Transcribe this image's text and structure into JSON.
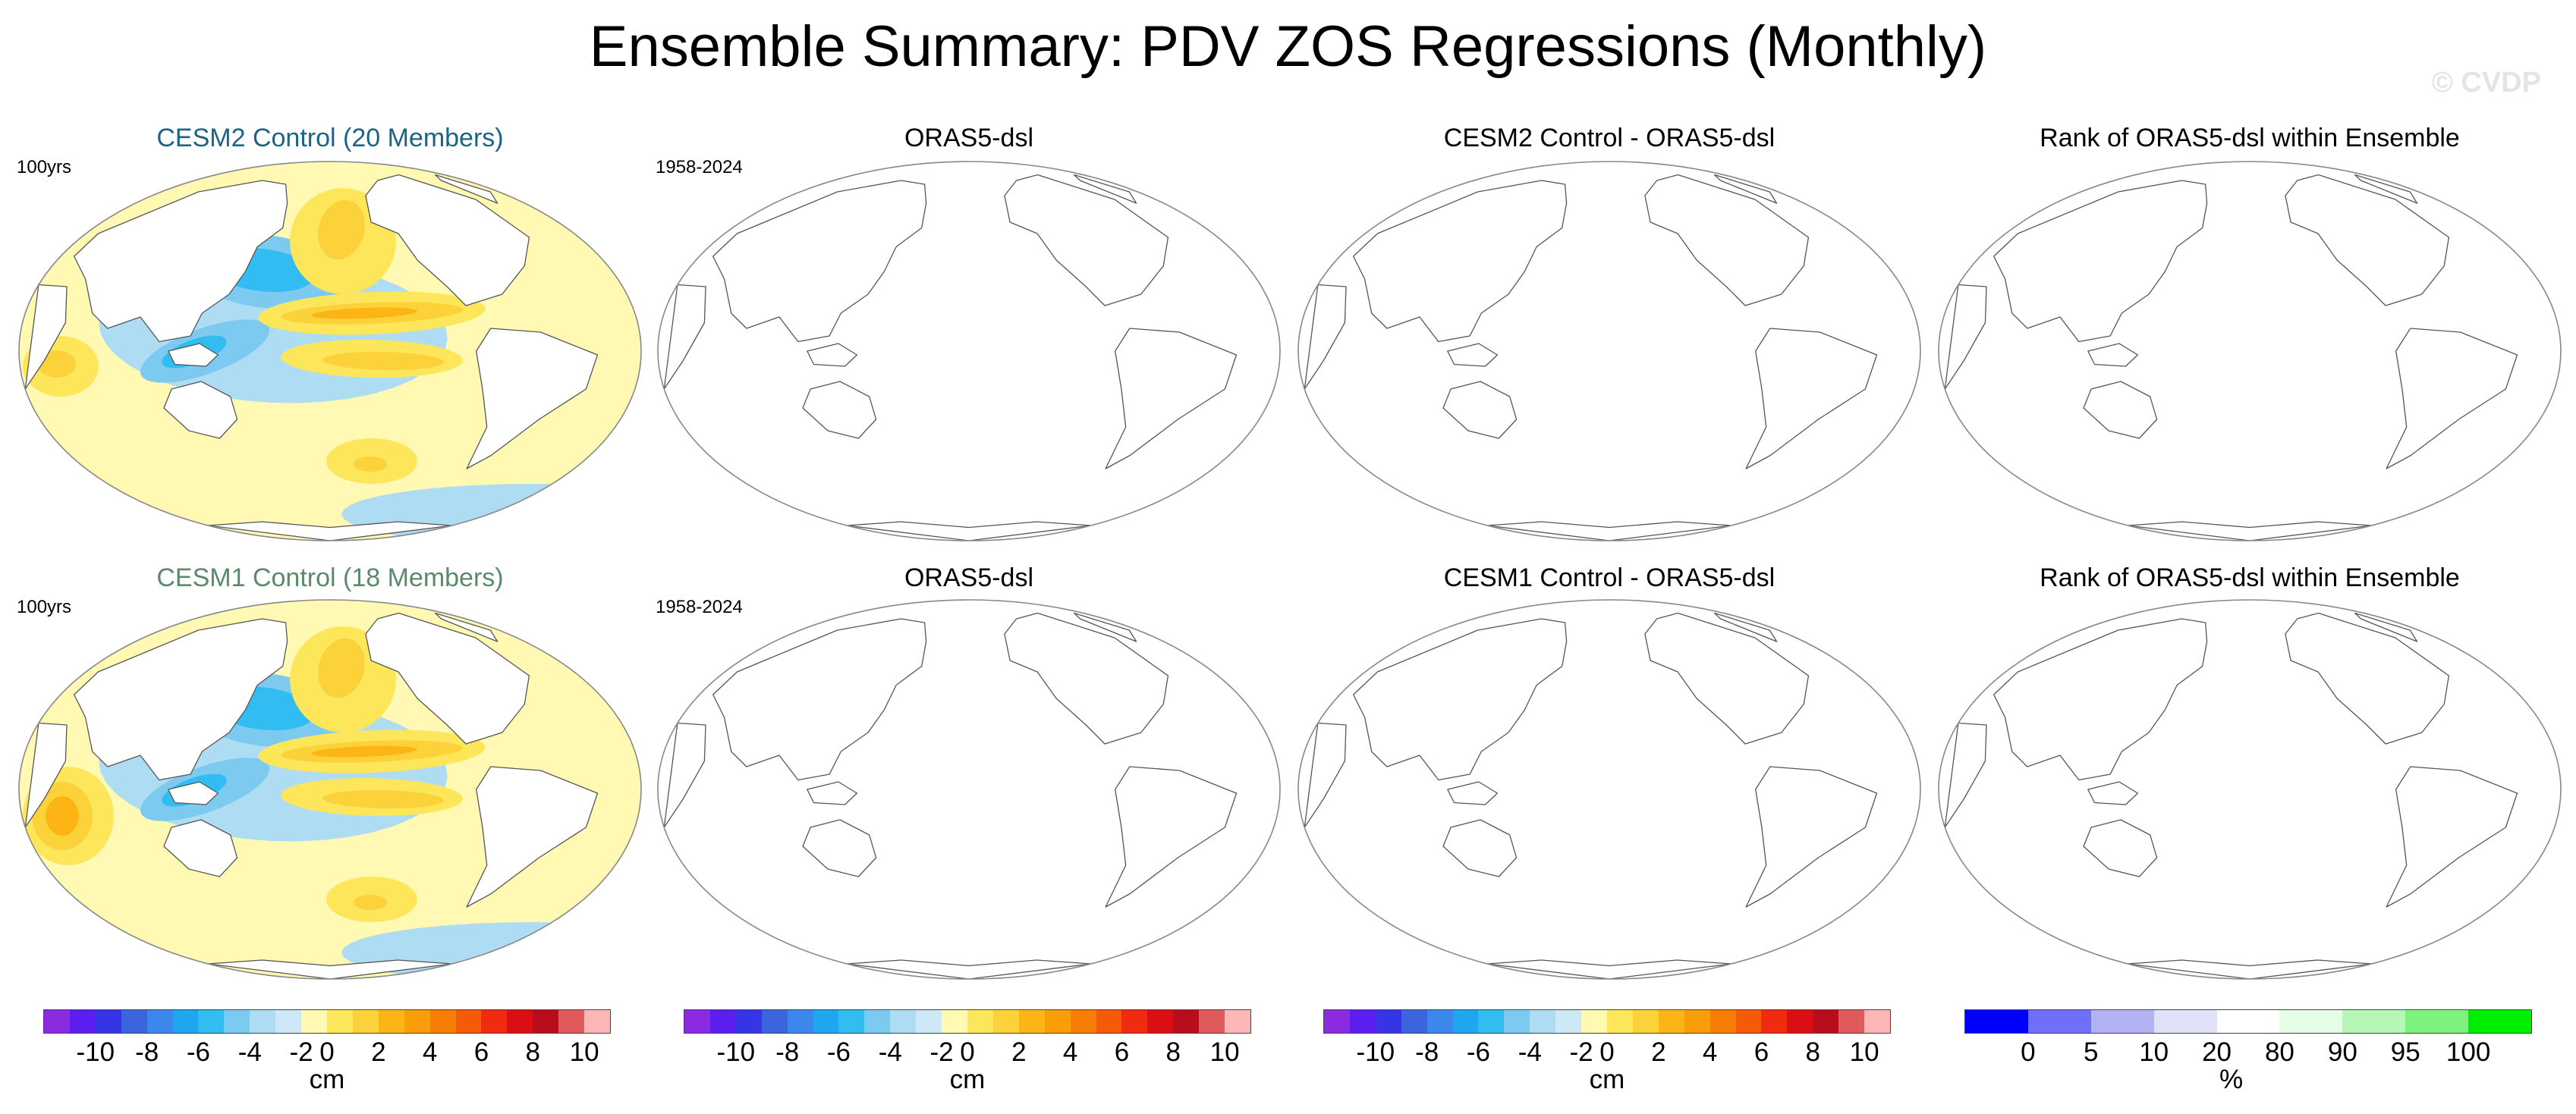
{
  "title": "Ensemble Summary: PDV ZOS Regressions (Monthly)",
  "watermark": "© CVDP",
  "rows": [
    {
      "panels": [
        {
          "title": "CESM2 Control (20 Members)",
          "period": "100yrs",
          "title_color": "#1a6585",
          "filled": true,
          "variant": 0
        },
        {
          "title": "ORAS5-dsl",
          "period": "1958-2024",
          "title_color": "#000000",
          "filled": false
        },
        {
          "title": "CESM2 Control - ORAS5-dsl",
          "period": "",
          "title_color": "#000000",
          "filled": false
        },
        {
          "title": "Rank of ORAS5-dsl within Ensemble",
          "period": "",
          "title_color": "#000000",
          "filled": false
        }
      ]
    },
    {
      "panels": [
        {
          "title": "CESM1 Control (18 Members)",
          "period": "100yrs",
          "title_color": "#5b8a6b",
          "filled": true,
          "variant": 1
        },
        {
          "title": "ORAS5-dsl",
          "period": "1958-2024",
          "title_color": "#000000",
          "filled": false
        },
        {
          "title": "CESM1 Control - ORAS5-dsl",
          "period": "",
          "title_color": "#000000",
          "filled": false
        },
        {
          "title": "Rank of ORAS5-dsl within Ensemble",
          "period": "",
          "title_color": "#000000",
          "filled": false
        }
      ]
    }
  ],
  "colorbars": [
    {
      "unit": "cm",
      "colors": [
        "#8a2be2",
        "#5a1ef0",
        "#3535e6",
        "#3c64dc",
        "#3c87ec",
        "#1fa6ef",
        "#32bdf2",
        "#7ccaf0",
        "#aedcf2",
        "#cde9f7",
        "#fff9b4",
        "#fde65a",
        "#fcd23a",
        "#fcb514",
        "#f99d0a",
        "#f87d04",
        "#f55a08",
        "#f02c10",
        "#d90f14",
        "#b80d1a",
        "#e05a5a",
        "#fcb6b6"
      ],
      "ticks": [
        "-10",
        "-8",
        "-6",
        "-4",
        "-2",
        "0",
        "2",
        "4",
        "6",
        "8",
        "10"
      ],
      "tick_index": [
        2,
        4,
        6,
        8,
        10,
        11,
        13,
        15,
        17,
        19,
        21
      ]
    },
    {
      "unit": "cm",
      "colors": [
        "#8a2be2",
        "#5a1ef0",
        "#3535e6",
        "#3c64dc",
        "#3c87ec",
        "#1fa6ef",
        "#32bdf2",
        "#7ccaf0",
        "#aedcf2",
        "#cde9f7",
        "#fff9b4",
        "#fde65a",
        "#fcd23a",
        "#fcb514",
        "#f99d0a",
        "#f87d04",
        "#f55a08",
        "#f02c10",
        "#d90f14",
        "#b80d1a",
        "#e05a5a",
        "#fcb6b6"
      ],
      "ticks": [
        "-10",
        "-8",
        "-6",
        "-4",
        "-2",
        "0",
        "2",
        "4",
        "6",
        "8",
        "10"
      ],
      "tick_index": [
        2,
        4,
        6,
        8,
        10,
        11,
        13,
        15,
        17,
        19,
        21
      ]
    },
    {
      "unit": "cm",
      "colors": [
        "#8a2be2",
        "#5a1ef0",
        "#3535e6",
        "#3c64dc",
        "#3c87ec",
        "#1fa6ef",
        "#32bdf2",
        "#7ccaf0",
        "#aedcf2",
        "#cde9f7",
        "#fff9b4",
        "#fde65a",
        "#fcd23a",
        "#fcb514",
        "#f99d0a",
        "#f87d04",
        "#f55a08",
        "#f02c10",
        "#d90f14",
        "#b80d1a",
        "#e05a5a",
        "#fcb6b6"
      ],
      "ticks": [
        "-10",
        "-8",
        "-6",
        "-4",
        "-2",
        "0",
        "2",
        "4",
        "6",
        "8",
        "10"
      ],
      "tick_index": [
        2,
        4,
        6,
        8,
        10,
        11,
        13,
        15,
        17,
        19,
        21
      ]
    },
    {
      "unit": "%",
      "colors": [
        "#0000ff",
        "#6f6ff9",
        "#b2b2f5",
        "#e1e1fa",
        "#ffffff",
        "#e4fde4",
        "#b6f7b6",
        "#7df27d",
        "#00ee00"
      ],
      "ticks": [
        "0",
        "5",
        "10",
        "20",
        "80",
        "90",
        "95",
        "100"
      ],
      "tick_index": [
        1,
        2,
        3,
        4,
        5,
        6,
        7,
        8
      ]
    }
  ]
}
